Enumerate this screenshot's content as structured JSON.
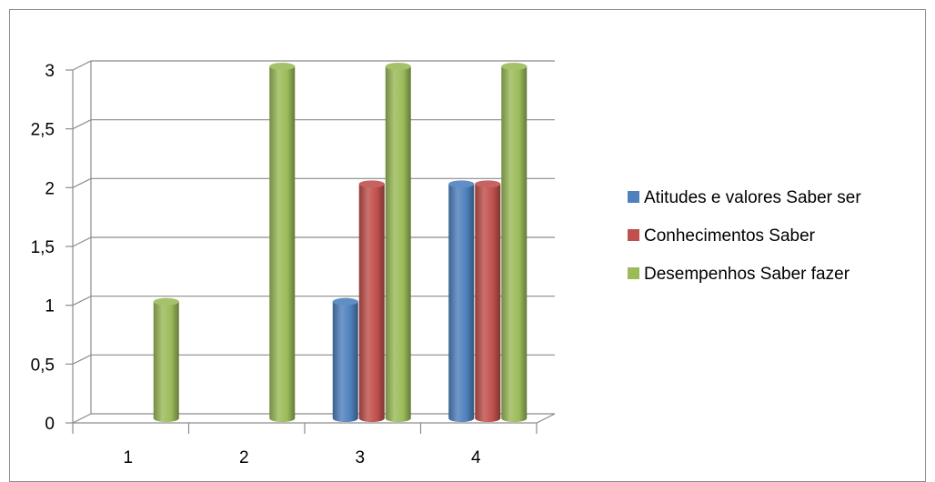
{
  "chart_data": {
    "type": "bar",
    "categories": [
      "1",
      "2",
      "3",
      "4"
    ],
    "series": [
      {
        "name": "Atitudes e valores Saber ser",
        "values": [
          0,
          0,
          1,
          2
        ],
        "color": "#4f81bd"
      },
      {
        "name": "Conhecimentos Saber",
        "values": [
          0,
          0,
          2,
          2
        ],
        "color": "#c0504d"
      },
      {
        "name": "Desempenhos Saber fazer",
        "values": [
          1,
          3,
          3,
          3
        ],
        "color": "#9bbb59"
      }
    ],
    "y_ticks": [
      "0",
      "0,5",
      "1",
      "1,5",
      "2",
      "2,5",
      "3"
    ],
    "ylim": [
      0,
      3
    ],
    "title": "",
    "xlabel": "",
    "ylabel": "",
    "grid": true,
    "legend_position": "right",
    "style": "3d-cylinder"
  }
}
